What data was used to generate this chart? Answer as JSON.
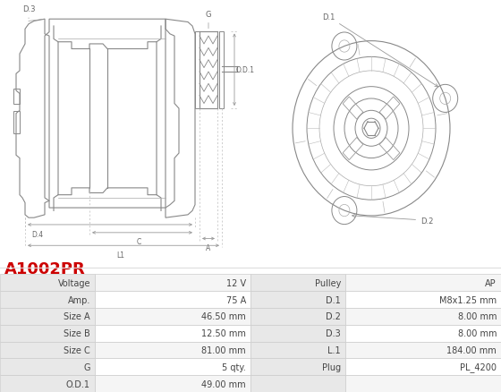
{
  "title": "A1002PR",
  "title_color": "#cc0000",
  "image_bg": "#ffffff",
  "table_header_bg": "#e8e8e8",
  "table_row_bg1": "#f5f5f5",
  "table_row_bg2": "#ffffff",
  "table_border_color": "#cccccc",
  "left_col": [
    "Voltage",
    "Amp.",
    "Size A",
    "Size B",
    "Size C",
    "G",
    "O.D.1"
  ],
  "left_val": [
    "12 V",
    "75 A",
    "46.50 mm",
    "12.50 mm",
    "81.00 mm",
    "5 qty.",
    "49.00 mm"
  ],
  "right_col": [
    "Pulley",
    "D.1",
    "D.2",
    "D.3",
    "L.1",
    "Plug",
    ""
  ],
  "right_val": [
    "AP",
    "M8x1.25 mm",
    "8.00 mm",
    "8.00 mm",
    "184.00 mm",
    "PL_4200",
    ""
  ]
}
